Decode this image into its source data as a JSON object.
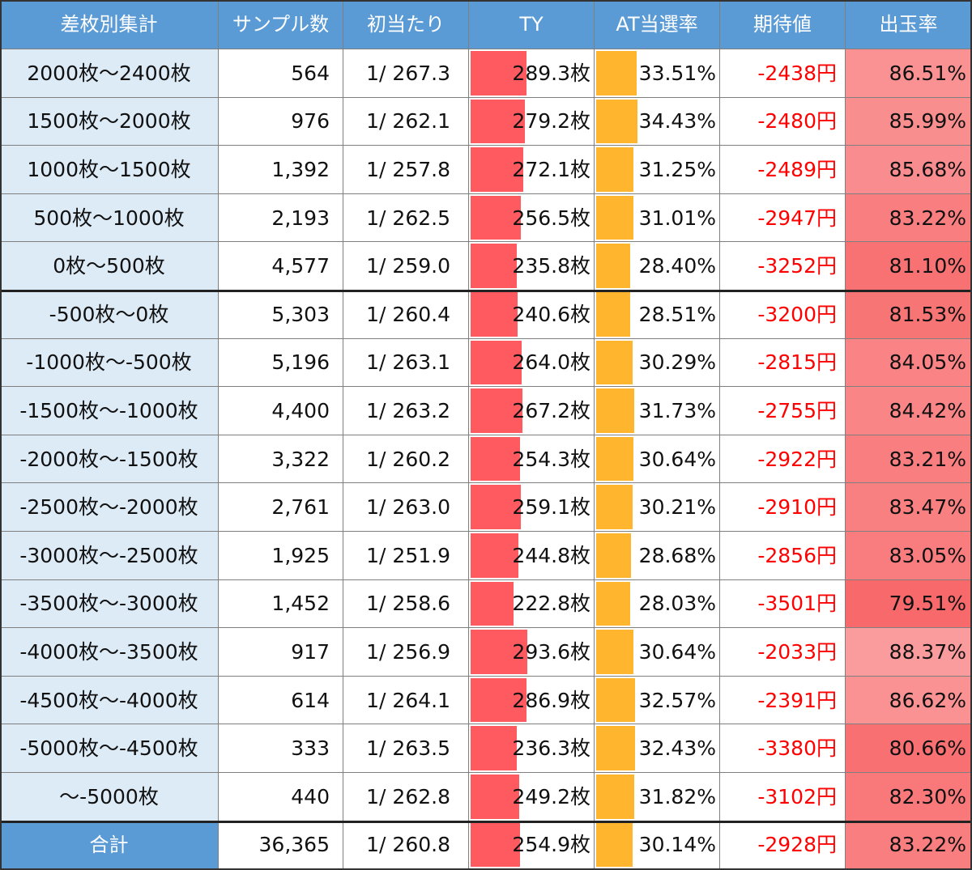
{
  "table": {
    "headers": [
      "差枚別集計",
      "サンプル数",
      "初当たり",
      "TY",
      "AT当選率",
      "期待値",
      "出玉率"
    ],
    "rows": [
      {
        "label": "2000枚～2400枚",
        "samples": "564",
        "first_hit": "1/ 267.3",
        "ty": "289.3枚",
        "ty_value": 289.3,
        "at_rate": "33.51%",
        "at_value": 33.51,
        "ev": "-2438円",
        "payout": "86.51%",
        "payout_value": 86.51
      },
      {
        "label": "1500枚～2000枚",
        "samples": "976",
        "first_hit": "1/ 262.1",
        "ty": "279.2枚",
        "ty_value": 279.2,
        "at_rate": "34.43%",
        "at_value": 34.43,
        "ev": "-2480円",
        "payout": "85.99%",
        "payout_value": 85.99
      },
      {
        "label": "1000枚～1500枚",
        "samples": "1,392",
        "first_hit": "1/ 257.8",
        "ty": "272.1枚",
        "ty_value": 272.1,
        "at_rate": "31.25%",
        "at_value": 31.25,
        "ev": "-2489円",
        "payout": "85.68%",
        "payout_value": 85.68
      },
      {
        "label": "500枚～1000枚",
        "samples": "2,193",
        "first_hit": "1/ 262.5",
        "ty": "256.5枚",
        "ty_value": 256.5,
        "at_rate": "31.01%",
        "at_value": 31.01,
        "ev": "-2947円",
        "payout": "83.22%",
        "payout_value": 83.22
      },
      {
        "label": "0枚～500枚",
        "samples": "4,577",
        "first_hit": "1/ 259.0",
        "ty": "235.8枚",
        "ty_value": 235.8,
        "at_rate": "28.40%",
        "at_value": 28.4,
        "ev": "-3252円",
        "payout": "81.10%",
        "payout_value": 81.1
      },
      {
        "label": "-500枚～0枚",
        "samples": "5,303",
        "first_hit": "1/ 260.4",
        "ty": "240.6枚",
        "ty_value": 240.6,
        "at_rate": "28.51%",
        "at_value": 28.51,
        "ev": "-3200円",
        "payout": "81.53%",
        "payout_value": 81.53
      },
      {
        "label": "-1000枚～-500枚",
        "samples": "5,196",
        "first_hit": "1/ 263.1",
        "ty": "264.0枚",
        "ty_value": 264.0,
        "at_rate": "30.29%",
        "at_value": 30.29,
        "ev": "-2815円",
        "payout": "84.05%",
        "payout_value": 84.05
      },
      {
        "label": "-1500枚～-1000枚",
        "samples": "4,400",
        "first_hit": "1/ 263.2",
        "ty": "267.2枚",
        "ty_value": 267.2,
        "at_rate": "31.73%",
        "at_value": 31.73,
        "ev": "-2755円",
        "payout": "84.42%",
        "payout_value": 84.42
      },
      {
        "label": "-2000枚～-1500枚",
        "samples": "3,322",
        "first_hit": "1/ 260.2",
        "ty": "254.3枚",
        "ty_value": 254.3,
        "at_rate": "30.64%",
        "at_value": 30.64,
        "ev": "-2922円",
        "payout": "83.21%",
        "payout_value": 83.21
      },
      {
        "label": "-2500枚～-2000枚",
        "samples": "2,761",
        "first_hit": "1/ 263.0",
        "ty": "259.1枚",
        "ty_value": 259.1,
        "at_rate": "30.21%",
        "at_value": 30.21,
        "ev": "-2910円",
        "payout": "83.47%",
        "payout_value": 83.47
      },
      {
        "label": "-3000枚～-2500枚",
        "samples": "1,925",
        "first_hit": "1/ 251.9",
        "ty": "244.8枚",
        "ty_value": 244.8,
        "at_rate": "28.68%",
        "at_value": 28.68,
        "ev": "-2856円",
        "payout": "83.05%",
        "payout_value": 83.05
      },
      {
        "label": "-3500枚～-3000枚",
        "samples": "1,452",
        "first_hit": "1/ 258.6",
        "ty": "222.8枚",
        "ty_value": 222.8,
        "at_rate": "28.03%",
        "at_value": 28.03,
        "ev": "-3501円",
        "payout": "79.51%",
        "payout_value": 79.51
      },
      {
        "label": "-4000枚～-3500枚",
        "samples": "917",
        "first_hit": "1/ 256.9",
        "ty": "293.6枚",
        "ty_value": 293.6,
        "at_rate": "30.64%",
        "at_value": 30.64,
        "ev": "-2033円",
        "payout": "88.37%",
        "payout_value": 88.37
      },
      {
        "label": "-4500枚～-4000枚",
        "samples": "614",
        "first_hit": "1/ 264.1",
        "ty": "286.9枚",
        "ty_value": 286.9,
        "at_rate": "32.57%",
        "at_value": 32.57,
        "ev": "-2391円",
        "payout": "86.62%",
        "payout_value": 86.62
      },
      {
        "label": "-5000枚～-4500枚",
        "samples": "333",
        "first_hit": "1/ 263.5",
        "ty": "236.3枚",
        "ty_value": 236.3,
        "at_rate": "32.43%",
        "at_value": 32.43,
        "ev": "-3380円",
        "payout": "80.66%",
        "payout_value": 80.66
      },
      {
        "label": "～-5000枚",
        "samples": "440",
        "first_hit": "1/ 262.8",
        "ty": "249.2枚",
        "ty_value": 249.2,
        "at_rate": "31.82%",
        "at_value": 31.82,
        "ev": "-3102円",
        "payout": "82.30%",
        "payout_value": 82.3
      }
    ],
    "total": {
      "label": "合計",
      "samples": "36,365",
      "first_hit": "1/ 260.8",
      "ty": "254.9枚",
      "ty_value": 254.9,
      "at_rate": "30.14%",
      "at_value": 30.14,
      "ev": "-2928円",
      "payout": "83.22%",
      "payout_value": 83.22
    }
  },
  "colors": {
    "header_bg": "#5b9bd5",
    "label_bg": "#ddebf7",
    "ty_bar": "#ff5a5f",
    "at_bar": "#ffb62e",
    "ev_text": "#ff0000",
    "payout_low": "#f8696b",
    "payout_high": "#fa9c9d"
  }
}
